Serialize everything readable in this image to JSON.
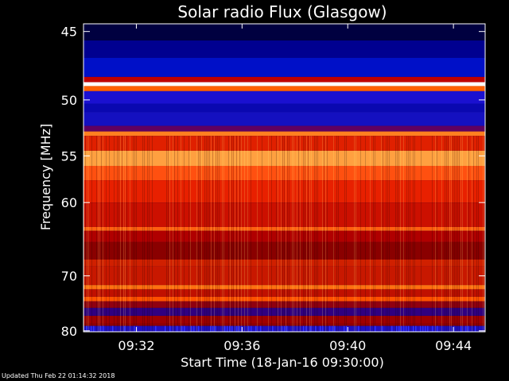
{
  "chart_data": {
    "type": "heatmap",
    "title": "Solar radio Flux (Glasgow)",
    "xlabel": "Start Time (18-Jan-16 09:30:00)",
    "ylabel": "Frequency [MHz]",
    "x_ticks": [
      "09:32",
      "09:36",
      "09:40",
      "09:44"
    ],
    "x_tick_minutes": [
      2,
      6,
      10,
      14
    ],
    "xlim_minutes": [
      0,
      15.2
    ],
    "y_ticks": [
      45,
      50,
      55,
      60,
      70,
      80
    ],
    "ylim": [
      44.5,
      80.2
    ],
    "y_scale": "reciprocal",
    "bands": [
      {
        "f0": 44.5,
        "f1": 45.6,
        "color": "#000040"
      },
      {
        "f0": 45.6,
        "f1": 46.8,
        "color": "#000090"
      },
      {
        "f0": 46.8,
        "f1": 48.2,
        "color": "#0010c8"
      },
      {
        "f0": 48.2,
        "f1": 48.6,
        "color": "#c00000"
      },
      {
        "f0": 48.6,
        "f1": 48.9,
        "color": "#ffffff"
      },
      {
        "f0": 48.9,
        "f1": 49.3,
        "color": "#ff6000"
      },
      {
        "f0": 49.3,
        "f1": 50.3,
        "color": "#1a10d0"
      },
      {
        "f0": 50.3,
        "f1": 51.0,
        "color": "#0a08b0"
      },
      {
        "f0": 51.0,
        "f1": 52.2,
        "color": "#1410c0"
      },
      {
        "f0": 52.2,
        "f1": 52.7,
        "color": "#600060"
      },
      {
        "f0": 52.7,
        "f1": 53.1,
        "color": "#ff8020"
      },
      {
        "f0": 53.1,
        "f1": 54.5,
        "color": "#e02000"
      },
      {
        "f0": 54.5,
        "f1": 56.0,
        "color": "#ffa040"
      },
      {
        "f0": 56.0,
        "f1": 57.5,
        "color": "#ff5010"
      },
      {
        "f0": 57.5,
        "f1": 60.0,
        "color": "#e82000"
      },
      {
        "f0": 60.0,
        "f1": 63.0,
        "color": "#cc1000"
      },
      {
        "f0": 63.0,
        "f1": 63.5,
        "color": "#ff6010"
      },
      {
        "f0": 63.5,
        "f1": 65.0,
        "color": "#b00000"
      },
      {
        "f0": 65.0,
        "f1": 67.5,
        "color": "#8a0000"
      },
      {
        "f0": 67.5,
        "f1": 68.5,
        "color": "#d02000"
      },
      {
        "f0": 68.5,
        "f1": 71.5,
        "color": "#c81800"
      },
      {
        "f0": 71.5,
        "f1": 72.2,
        "color": "#ff7010"
      },
      {
        "f0": 72.2,
        "f1": 73.5,
        "color": "#c01000"
      },
      {
        "f0": 73.5,
        "f1": 74.3,
        "color": "#ff5000"
      },
      {
        "f0": 74.3,
        "f1": 75.5,
        "color": "#900010"
      },
      {
        "f0": 75.5,
        "f1": 77.0,
        "color": "#300080"
      },
      {
        "f0": 77.0,
        "f1": 78.5,
        "color": "#a00000"
      },
      {
        "f0": 78.5,
        "f1": 79.0,
        "color": "#900000"
      },
      {
        "f0": 79.0,
        "f1": 80.2,
        "color": "#2010c0"
      }
    ]
  },
  "footer": "Updated Thu Feb 22 01:14:32 2018"
}
